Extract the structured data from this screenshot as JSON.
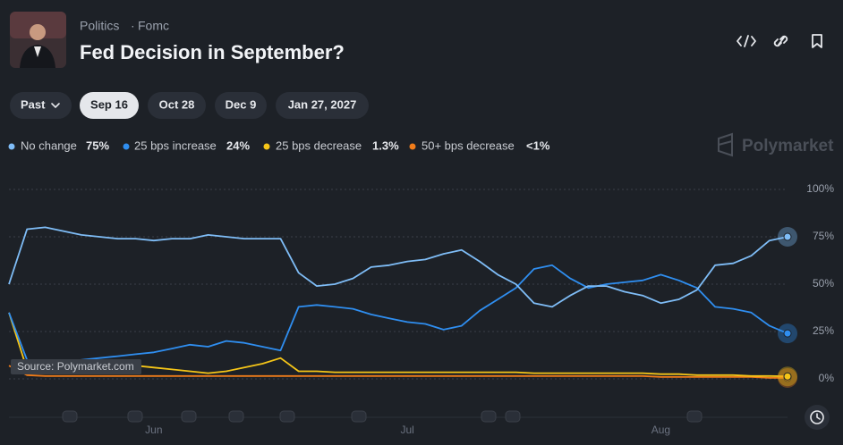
{
  "header": {
    "category": "Politics",
    "subcategory": "Fomc",
    "title": "Fed Decision in September?"
  },
  "tabs": [
    "Past",
    "Sep 16",
    "Oct 28",
    "Dec 9",
    "Jan 27, 2027"
  ],
  "selected_tab": "Sep 16",
  "brand": "Polymarket",
  "source": "Source: Polymarket.com",
  "chart_data": {
    "type": "line",
    "categories": [
      null,
      null,
      null,
      null,
      null,
      null,
      null,
      null,
      "Jun",
      null,
      null,
      null,
      null,
      null,
      null,
      null,
      null,
      null,
      null,
      null,
      null,
      null,
      "Jul",
      null,
      null,
      null,
      null,
      null,
      null,
      null,
      null,
      null,
      null,
      null,
      null,
      null,
      "Aug",
      null,
      null,
      null,
      null,
      null,
      null,
      null
    ],
    "series": [
      {
        "name": "No change",
        "legend_value": "75%",
        "color": "#7fbdf7",
        "values": [
          50,
          79,
          80,
          78,
          76,
          75,
          74,
          74,
          73,
          74,
          74,
          76,
          75,
          74,
          74,
          74,
          56,
          49,
          50,
          53,
          59,
          60,
          62,
          63,
          66,
          68,
          62,
          55,
          50,
          40,
          38,
          44,
          49,
          49,
          46,
          44,
          40,
          42,
          47,
          60,
          61,
          65,
          73,
          75
        ]
      },
      {
        "name": "25 bps increase",
        "legend_value": "24%",
        "color": "#2f8ef0",
        "values": [
          35,
          10,
          8,
          9,
          10,
          11,
          12,
          13,
          14,
          16,
          18,
          17,
          20,
          19,
          17,
          15,
          38,
          39,
          38,
          37,
          34,
          32,
          30,
          29,
          26,
          28,
          36,
          42,
          48,
          58,
          60,
          53,
          48,
          50,
          51,
          52,
          55,
          52,
          48,
          38,
          37,
          35,
          28,
          24
        ]
      },
      {
        "name": "25 bps decrease",
        "legend_value": "1.3%",
        "color": "#f5c518",
        "values": [
          35,
          5,
          4,
          4,
          6,
          7,
          8,
          7,
          6,
          5,
          4,
          3,
          4,
          6,
          8,
          11,
          4,
          4,
          3.5,
          3.5,
          3.5,
          3.5,
          3.5,
          3.5,
          3.5,
          3.5,
          3.5,
          3.5,
          3.5,
          3,
          3,
          3,
          3,
          3,
          3,
          3,
          2.5,
          2.5,
          2,
          2,
          2,
          1.5,
          1.5,
          1.3
        ]
      },
      {
        "name": "50+ bps decrease",
        "legend_value": "<1%",
        "color": "#f07c1a",
        "values": [
          7,
          2,
          1.5,
          1.5,
          1.5,
          1.5,
          1.5,
          1.5,
          1.5,
          1.5,
          1.5,
          1.5,
          1.5,
          1.5,
          1.5,
          1.5,
          1.5,
          1.5,
          1.5,
          1.5,
          1.5,
          1.5,
          1.5,
          1.5,
          1.5,
          1.5,
          1.5,
          1.5,
          1.5,
          1.5,
          1.5,
          1.5,
          1.5,
          1.5,
          1.5,
          1.5,
          1,
          1,
          1,
          1,
          1,
          1,
          0.5,
          0.5
        ]
      }
    ],
    "ylim": [
      0,
      100
    ],
    "yticks": [
      {
        "value": 0,
        "label": "0%"
      },
      {
        "value": 25,
        "label": "25%"
      },
      {
        "value": 50,
        "label": "50%"
      },
      {
        "value": 75,
        "label": "75%"
      },
      {
        "value": 100,
        "label": "100%"
      }
    ],
    "grid": true
  }
}
